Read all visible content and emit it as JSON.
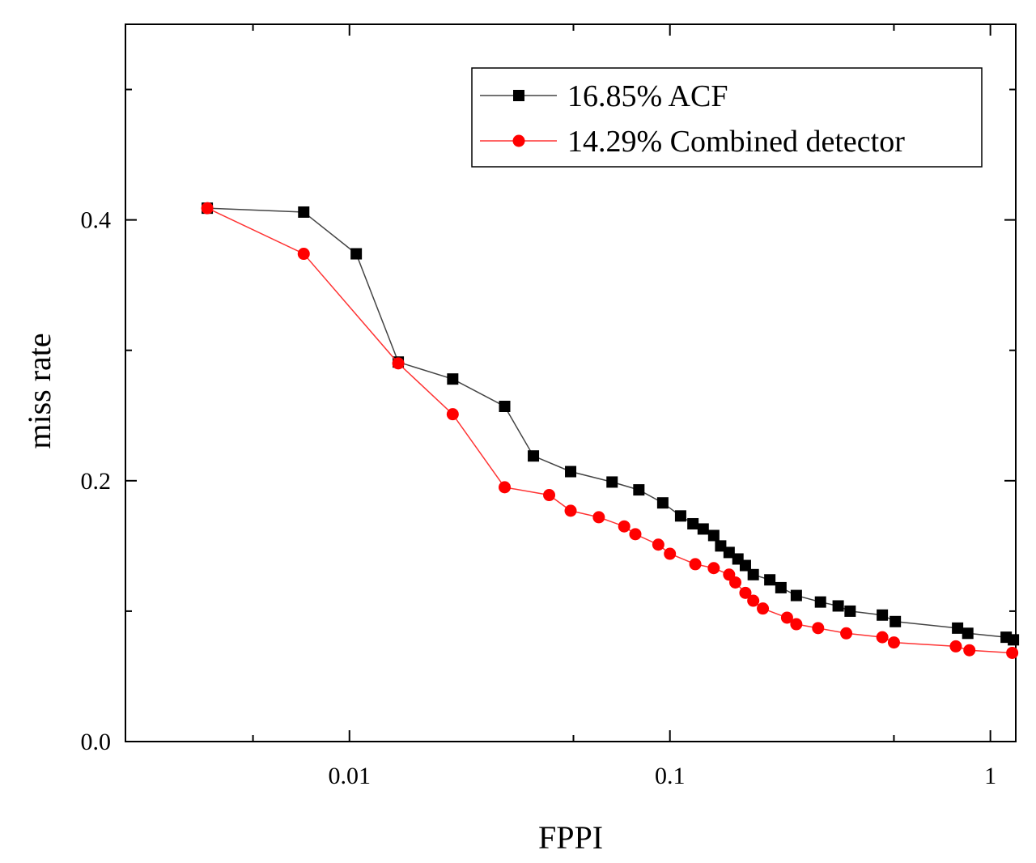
{
  "chart_data": {
    "type": "line",
    "title": "",
    "xlabel": "FPPI",
    "ylabel": "miss rate",
    "xscale": "log",
    "xlim": [
      0.002,
      1.2
    ],
    "ylim": [
      0.0,
      0.55
    ],
    "x_ticks": [
      {
        "value": 0.01,
        "label": "0.01"
      },
      {
        "value": 0.1,
        "label": "0.1"
      },
      {
        "value": 1,
        "label": "1"
      }
    ],
    "y_ticks": [
      {
        "value": 0.0,
        "label": "0.0"
      },
      {
        "value": 0.2,
        "label": "0.2"
      },
      {
        "value": 0.4,
        "label": "0.4"
      }
    ],
    "legend": {
      "position": "top-right"
    },
    "series": [
      {
        "name": "16.85% ACF",
        "color": "#000000",
        "line_color": "#444444",
        "marker": "square",
        "points": [
          [
            0.0036,
            0.409
          ],
          [
            0.0072,
            0.406
          ],
          [
            0.0105,
            0.374
          ],
          [
            0.0142,
            0.291
          ],
          [
            0.021,
            0.278
          ],
          [
            0.0305,
            0.257
          ],
          [
            0.0375,
            0.219
          ],
          [
            0.049,
            0.207
          ],
          [
            0.066,
            0.199
          ],
          [
            0.08,
            0.193
          ],
          [
            0.095,
            0.183
          ],
          [
            0.108,
            0.173
          ],
          [
            0.118,
            0.167
          ],
          [
            0.127,
            0.163
          ],
          [
            0.137,
            0.158
          ],
          [
            0.144,
            0.15
          ],
          [
            0.153,
            0.145
          ],
          [
            0.163,
            0.14
          ],
          [
            0.172,
            0.135
          ],
          [
            0.182,
            0.128
          ],
          [
            0.205,
            0.124
          ],
          [
            0.222,
            0.118
          ],
          [
            0.248,
            0.112
          ],
          [
            0.295,
            0.107
          ],
          [
            0.335,
            0.104
          ],
          [
            0.365,
            0.1
          ],
          [
            0.46,
            0.097
          ],
          [
            0.505,
            0.092
          ],
          [
            0.79,
            0.087
          ],
          [
            0.85,
            0.083
          ],
          [
            1.12,
            0.08
          ],
          [
            1.18,
            0.078
          ]
        ]
      },
      {
        "name": "14.29% Combined detector",
        "color": "#ff0000",
        "line_color": "#ff3333",
        "marker": "circle",
        "points": [
          [
            0.0036,
            0.409
          ],
          [
            0.0072,
            0.374
          ],
          [
            0.0142,
            0.29
          ],
          [
            0.021,
            0.251
          ],
          [
            0.0305,
            0.195
          ],
          [
            0.042,
            0.189
          ],
          [
            0.049,
            0.177
          ],
          [
            0.06,
            0.172
          ],
          [
            0.072,
            0.165
          ],
          [
            0.078,
            0.159
          ],
          [
            0.092,
            0.151
          ],
          [
            0.1,
            0.144
          ],
          [
            0.12,
            0.136
          ],
          [
            0.137,
            0.133
          ],
          [
            0.153,
            0.128
          ],
          [
            0.16,
            0.122
          ],
          [
            0.172,
            0.114
          ],
          [
            0.182,
            0.108
          ],
          [
            0.195,
            0.102
          ],
          [
            0.232,
            0.095
          ],
          [
            0.248,
            0.09
          ],
          [
            0.29,
            0.087
          ],
          [
            0.355,
            0.083
          ],
          [
            0.46,
            0.08
          ],
          [
            0.5,
            0.076
          ],
          [
            0.78,
            0.073
          ],
          [
            0.86,
            0.07
          ],
          [
            1.17,
            0.068
          ]
        ]
      }
    ]
  }
}
